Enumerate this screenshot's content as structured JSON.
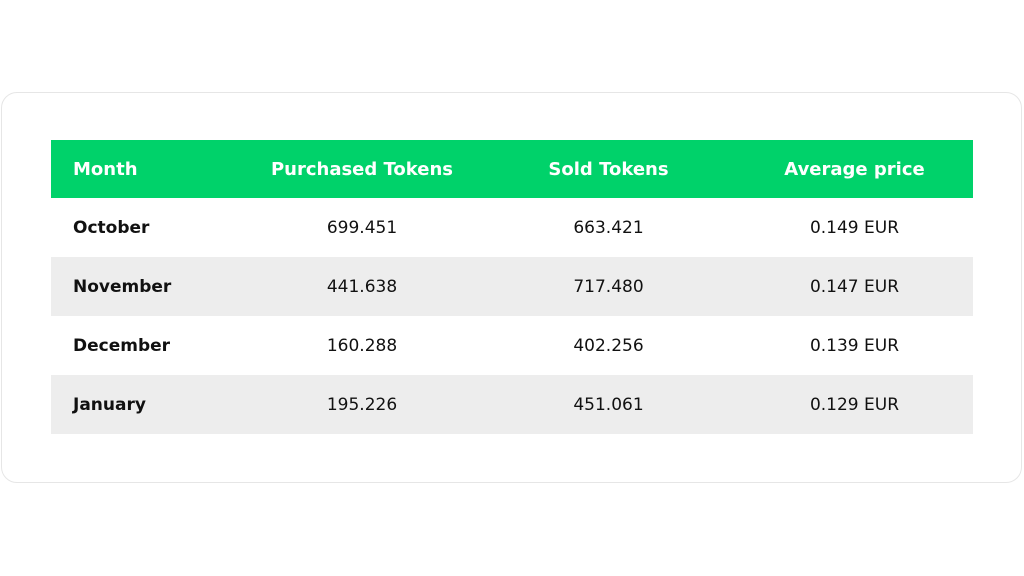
{
  "table": {
    "header": [
      "Month",
      "Purchased Tokens",
      "Sold Tokens",
      "Average price"
    ],
    "rows": [
      [
        "October",
        "699.451",
        "663.421",
        "0.149 EUR"
      ],
      [
        "November",
        "441.638",
        "717.480",
        "0.147 EUR"
      ],
      [
        "December",
        "160.288",
        "402.256",
        "0.139 EUR"
      ],
      [
        "January",
        "195.226",
        "451.061",
        "0.129 EUR"
      ]
    ]
  }
}
